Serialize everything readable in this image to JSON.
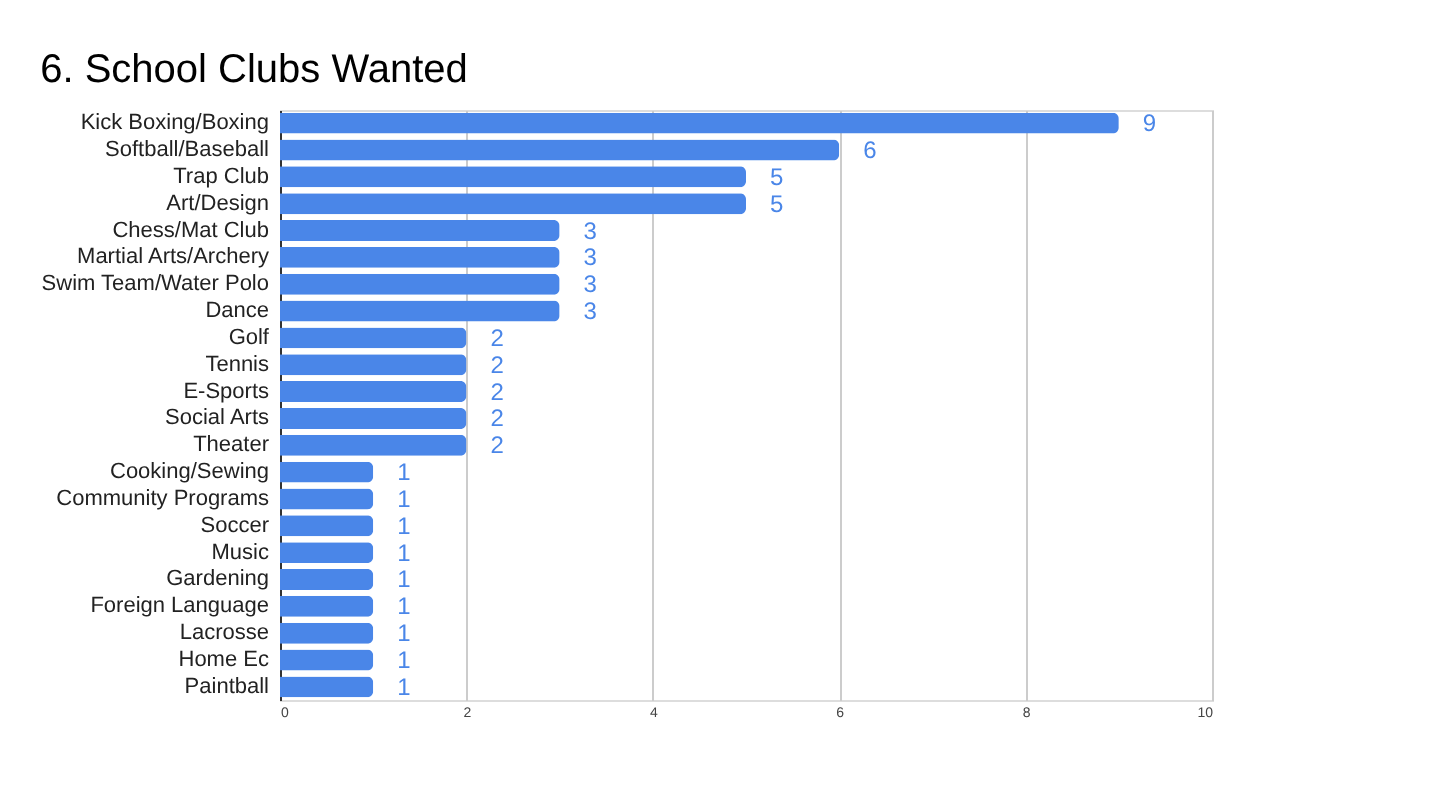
{
  "chart_data": {
    "type": "bar",
    "orientation": "horizontal",
    "title": "6. School Clubs Wanted",
    "categories": [
      "Kick Boxing/Boxing",
      "Softball/Baseball",
      "Trap Club",
      "Art/Design",
      "Chess/Mat Club",
      "Martial Arts/Archery",
      "Swim Team/Water Polo",
      "Dance",
      "Golf",
      "Tennis",
      "E-Sports",
      "Social Arts",
      "Theater",
      "Cooking/Sewing",
      "Community Programs",
      "Soccer",
      "Music",
      "Gardening",
      "Foreign Language",
      "Lacrosse",
      "Home Ec",
      "Paintball"
    ],
    "values": [
      9,
      6,
      5,
      5,
      3,
      3,
      3,
      3,
      2,
      2,
      2,
      2,
      2,
      1,
      1,
      1,
      1,
      1,
      1,
      1,
      1,
      1
    ],
    "color": "#4a86e8",
    "xlim": [
      0,
      10
    ],
    "xticks": [
      0,
      2,
      4,
      6,
      8,
      10
    ],
    "grid": "x",
    "data_labels": true
  }
}
